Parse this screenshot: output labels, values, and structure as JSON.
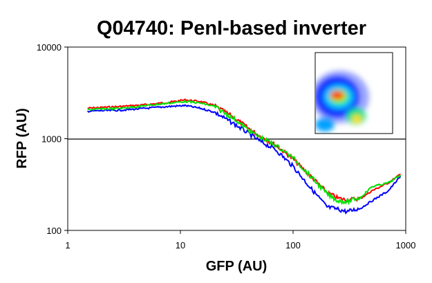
{
  "chart_data": {
    "type": "line",
    "title": "Q04740: PenI-based inverter",
    "xlabel": "GFP (AU)",
    "ylabel": "RFP (AU)",
    "xscale": "log",
    "yscale": "log",
    "xlim": [
      1,
      1000
    ],
    "ylim": [
      100,
      10000
    ],
    "xticks": [
      "1",
      "10",
      "100",
      "1000"
    ],
    "yticks": [
      "100",
      "1000",
      "10000"
    ],
    "grid": "horizontal line at 1000",
    "legend": "none",
    "inset": "flow cytometry density scatter plot (top-right)",
    "series": [
      {
        "name": "red",
        "color": "#ff0000",
        "x": [
          1.5,
          3,
          5,
          8,
          11,
          15,
          20,
          30,
          40,
          50,
          70,
          100,
          140,
          200,
          250,
          300,
          400,
          500,
          700,
          900
        ],
        "y": [
          2150,
          2250,
          2350,
          2500,
          2650,
          2550,
          2300,
          1700,
          1300,
          1080,
          850,
          600,
          400,
          260,
          225,
          215,
          225,
          270,
          330,
          410
        ]
      },
      {
        "name": "blue",
        "color": "#0000ff",
        "x": [
          1.5,
          3,
          5,
          8,
          11,
          15,
          20,
          30,
          40,
          50,
          70,
          100,
          140,
          200,
          250,
          300,
          400,
          500,
          700,
          900
        ],
        "y": [
          2000,
          2050,
          2150,
          2250,
          2300,
          2150,
          1950,
          1450,
          1150,
          950,
          760,
          500,
          300,
          180,
          170,
          160,
          175,
          210,
          270,
          390
        ]
      },
      {
        "name": "green",
        "color": "#00e000",
        "x": [
          1.5,
          3,
          5,
          8,
          11,
          15,
          20,
          30,
          40,
          50,
          70,
          100,
          140,
          200,
          250,
          300,
          400,
          500,
          700,
          900
        ],
        "y": [
          2080,
          2150,
          2300,
          2450,
          2550,
          2450,
          2250,
          1650,
          1250,
          1050,
          850,
          620,
          400,
          250,
          210,
          205,
          230,
          300,
          330,
          400
        ]
      }
    ]
  }
}
